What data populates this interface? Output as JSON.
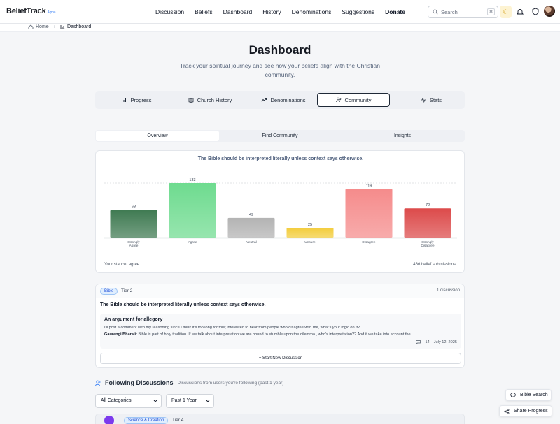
{
  "app": {
    "brand": "BeliefTrack",
    "brand_tag": "Alpha"
  },
  "nav": [
    "Discussion",
    "Beliefs",
    "Dashboard",
    "History",
    "Denominations",
    "Suggestions",
    "Donate"
  ],
  "search": {
    "placeholder": "Search"
  },
  "breadcrumb": {
    "home": "Home",
    "current": "Dashboard"
  },
  "page": {
    "title": "Dashboard",
    "subtitle": "Track your spiritual journey and see how your beliefs align with the Christian community."
  },
  "tabs": [
    {
      "label": "Progress",
      "icon": "bar-chart-icon"
    },
    {
      "label": "Church History",
      "icon": "book-icon"
    },
    {
      "label": "Denominations",
      "icon": "trend-icon"
    },
    {
      "label": "Community",
      "icon": "users-icon",
      "active": true
    },
    {
      "label": "Stats",
      "icon": "activity-icon"
    }
  ],
  "subtabs": [
    {
      "label": "Overview",
      "active": true
    },
    {
      "label": "Find Community"
    },
    {
      "label": "Insights"
    }
  ],
  "chart_data": {
    "type": "bar",
    "title": "The Bible should be interpreted literally unless context says otherwise.",
    "categories": [
      "Strongly Agree",
      "Agree",
      "Neutral",
      "Unsure",
      "Disagree",
      "Strongly Disagree"
    ],
    "values": [
      68,
      133,
      49,
      25,
      119,
      72
    ],
    "colors": [
      "#3f7a52",
      "#6edb8f",
      "#b3b3b3",
      "#f3cd3d",
      "#f58b8b",
      "#dc4a4a"
    ],
    "xlabel": "",
    "ylabel": "",
    "ylim": [
      0,
      133
    ],
    "legend": "none",
    "reference_line": "dashed at max"
  },
  "chart_footer": {
    "stance": "Your stance: agree",
    "submissions": "466 belief submissions"
  },
  "discussion": {
    "badge": "Bible",
    "tier": "Tier 2",
    "count": "1 discussion",
    "statement": "The Bible should be interpreted literally unless context says otherwise.",
    "post": {
      "title": "An argument for allegory",
      "body": "I'll post a comment with my reasoning since I think it's too long for this; interested to hear from people who disagree with me, what's your logic on it?",
      "reply_author": "Gaurangi Bharali:",
      "reply_text": "Bible is part of holy tradition. If we talk about interpretation we are bound to stumble upon the dilemma , who's interpretation?? And if we take into account the ...",
      "comments": "14",
      "date": "July 12, 2025"
    },
    "new_button": "+ Start New Discussion"
  },
  "following": {
    "title": "Following Discussions",
    "subtitle": "Discussions from users you're following (past 1 year)",
    "category_select": "All Categories",
    "time_select": "Past 1 Year",
    "peek_category": "Science & Creation",
    "peek_tier": "Tier 4"
  },
  "floating": {
    "bible_search": "Bible Search",
    "share_progress": "Share Progress"
  }
}
